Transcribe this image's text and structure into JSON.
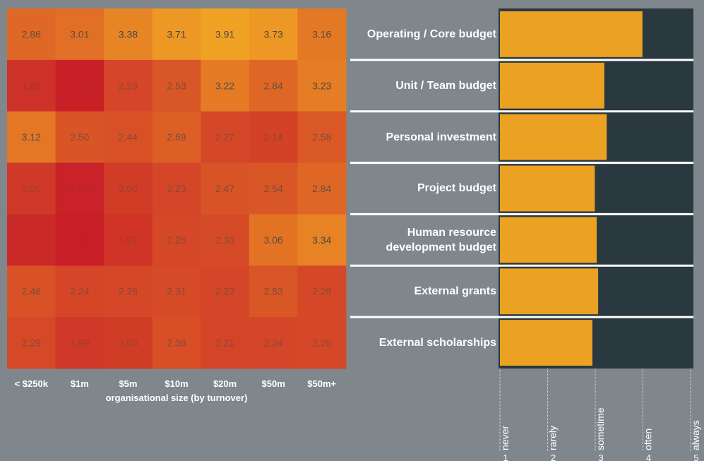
{
  "chart_data": [
    {
      "type": "heatmap",
      "x_label": "organisational size (by turnover)",
      "columns": [
        "< $250k",
        "$1m",
        "$5m",
        "$10m",
        "$20m",
        "$50m",
        "$50m+"
      ],
      "rows": [
        "Operating / Core budget",
        "Unit / Team budget",
        "Personal investment",
        "Project budget",
        "Human resource development budget",
        "External grants",
        "External scholarships"
      ],
      "values": [
        [
          2.86,
          3.01,
          3.38,
          3.71,
          3.91,
          3.73,
          3.16
        ],
        [
          1.85,
          1.54,
          2.23,
          2.53,
          3.22,
          2.84,
          3.23
        ],
        [
          3.12,
          2.5,
          2.44,
          2.69,
          2.27,
          2.14,
          2.58
        ],
        [
          2.0,
          1.59,
          2.06,
          2.23,
          2.47,
          2.54,
          2.84
        ],
        [
          1.71,
          1.51,
          1.91,
          2.25,
          2.33,
          3.06,
          3.34
        ],
        [
          2.46,
          2.24,
          2.28,
          2.31,
          2.23,
          2.53,
          2.28
        ],
        [
          2.29,
          1.99,
          2.06,
          2.38,
          2.21,
          2.24,
          2.25
        ]
      ],
      "value_labels": [
        [
          "2.86",
          "3.01",
          "3.38",
          "3.71",
          "3.91",
          "3.73",
          "3.16"
        ],
        [
          "1.85",
          "1.54",
          "2.23",
          "2.53",
          "3.22",
          "2.84",
          "3.23"
        ],
        [
          "3.12",
          "2.50",
          "2.44",
          "2.69",
          "2.27",
          "2.14",
          "2.58"
        ],
        [
          "2.00",
          "1.59",
          "2.06",
          "2.23",
          "2.47",
          "2.54",
          "2.84"
        ],
        [
          "1.71",
          "1.51",
          "1.91",
          "2.25",
          "2.33",
          "3.06",
          "3.34"
        ],
        [
          "2.46",
          "2.24",
          "2.28",
          "2.31",
          "2.23",
          "2.53",
          "2.28"
        ],
        [
          "2.29",
          "1.99",
          "2.06",
          "2.38",
          "2.21",
          "2.24",
          "2.25"
        ]
      ],
      "colors": [
        "#c81e28",
        "#f0a224"
      ]
    },
    {
      "type": "bar",
      "orientation": "horizontal",
      "categories": [
        "Operating / Core budget",
        "Unit / Team budget",
        "Personal investment",
        "Project budget",
        "Human resource development budget",
        "External grants",
        "External scholarships"
      ],
      "values": [
        3.99,
        3.19,
        3.24,
        2.99,
        3.03,
        3.06,
        2.94
      ],
      "color": "#eba122",
      "xlim": [
        1,
        5
      ],
      "xticks": [
        1,
        2,
        3,
        4,
        5
      ],
      "xtick_names": [
        "never",
        "rarely",
        "sometime",
        "often",
        "always"
      ]
    }
  ]
}
